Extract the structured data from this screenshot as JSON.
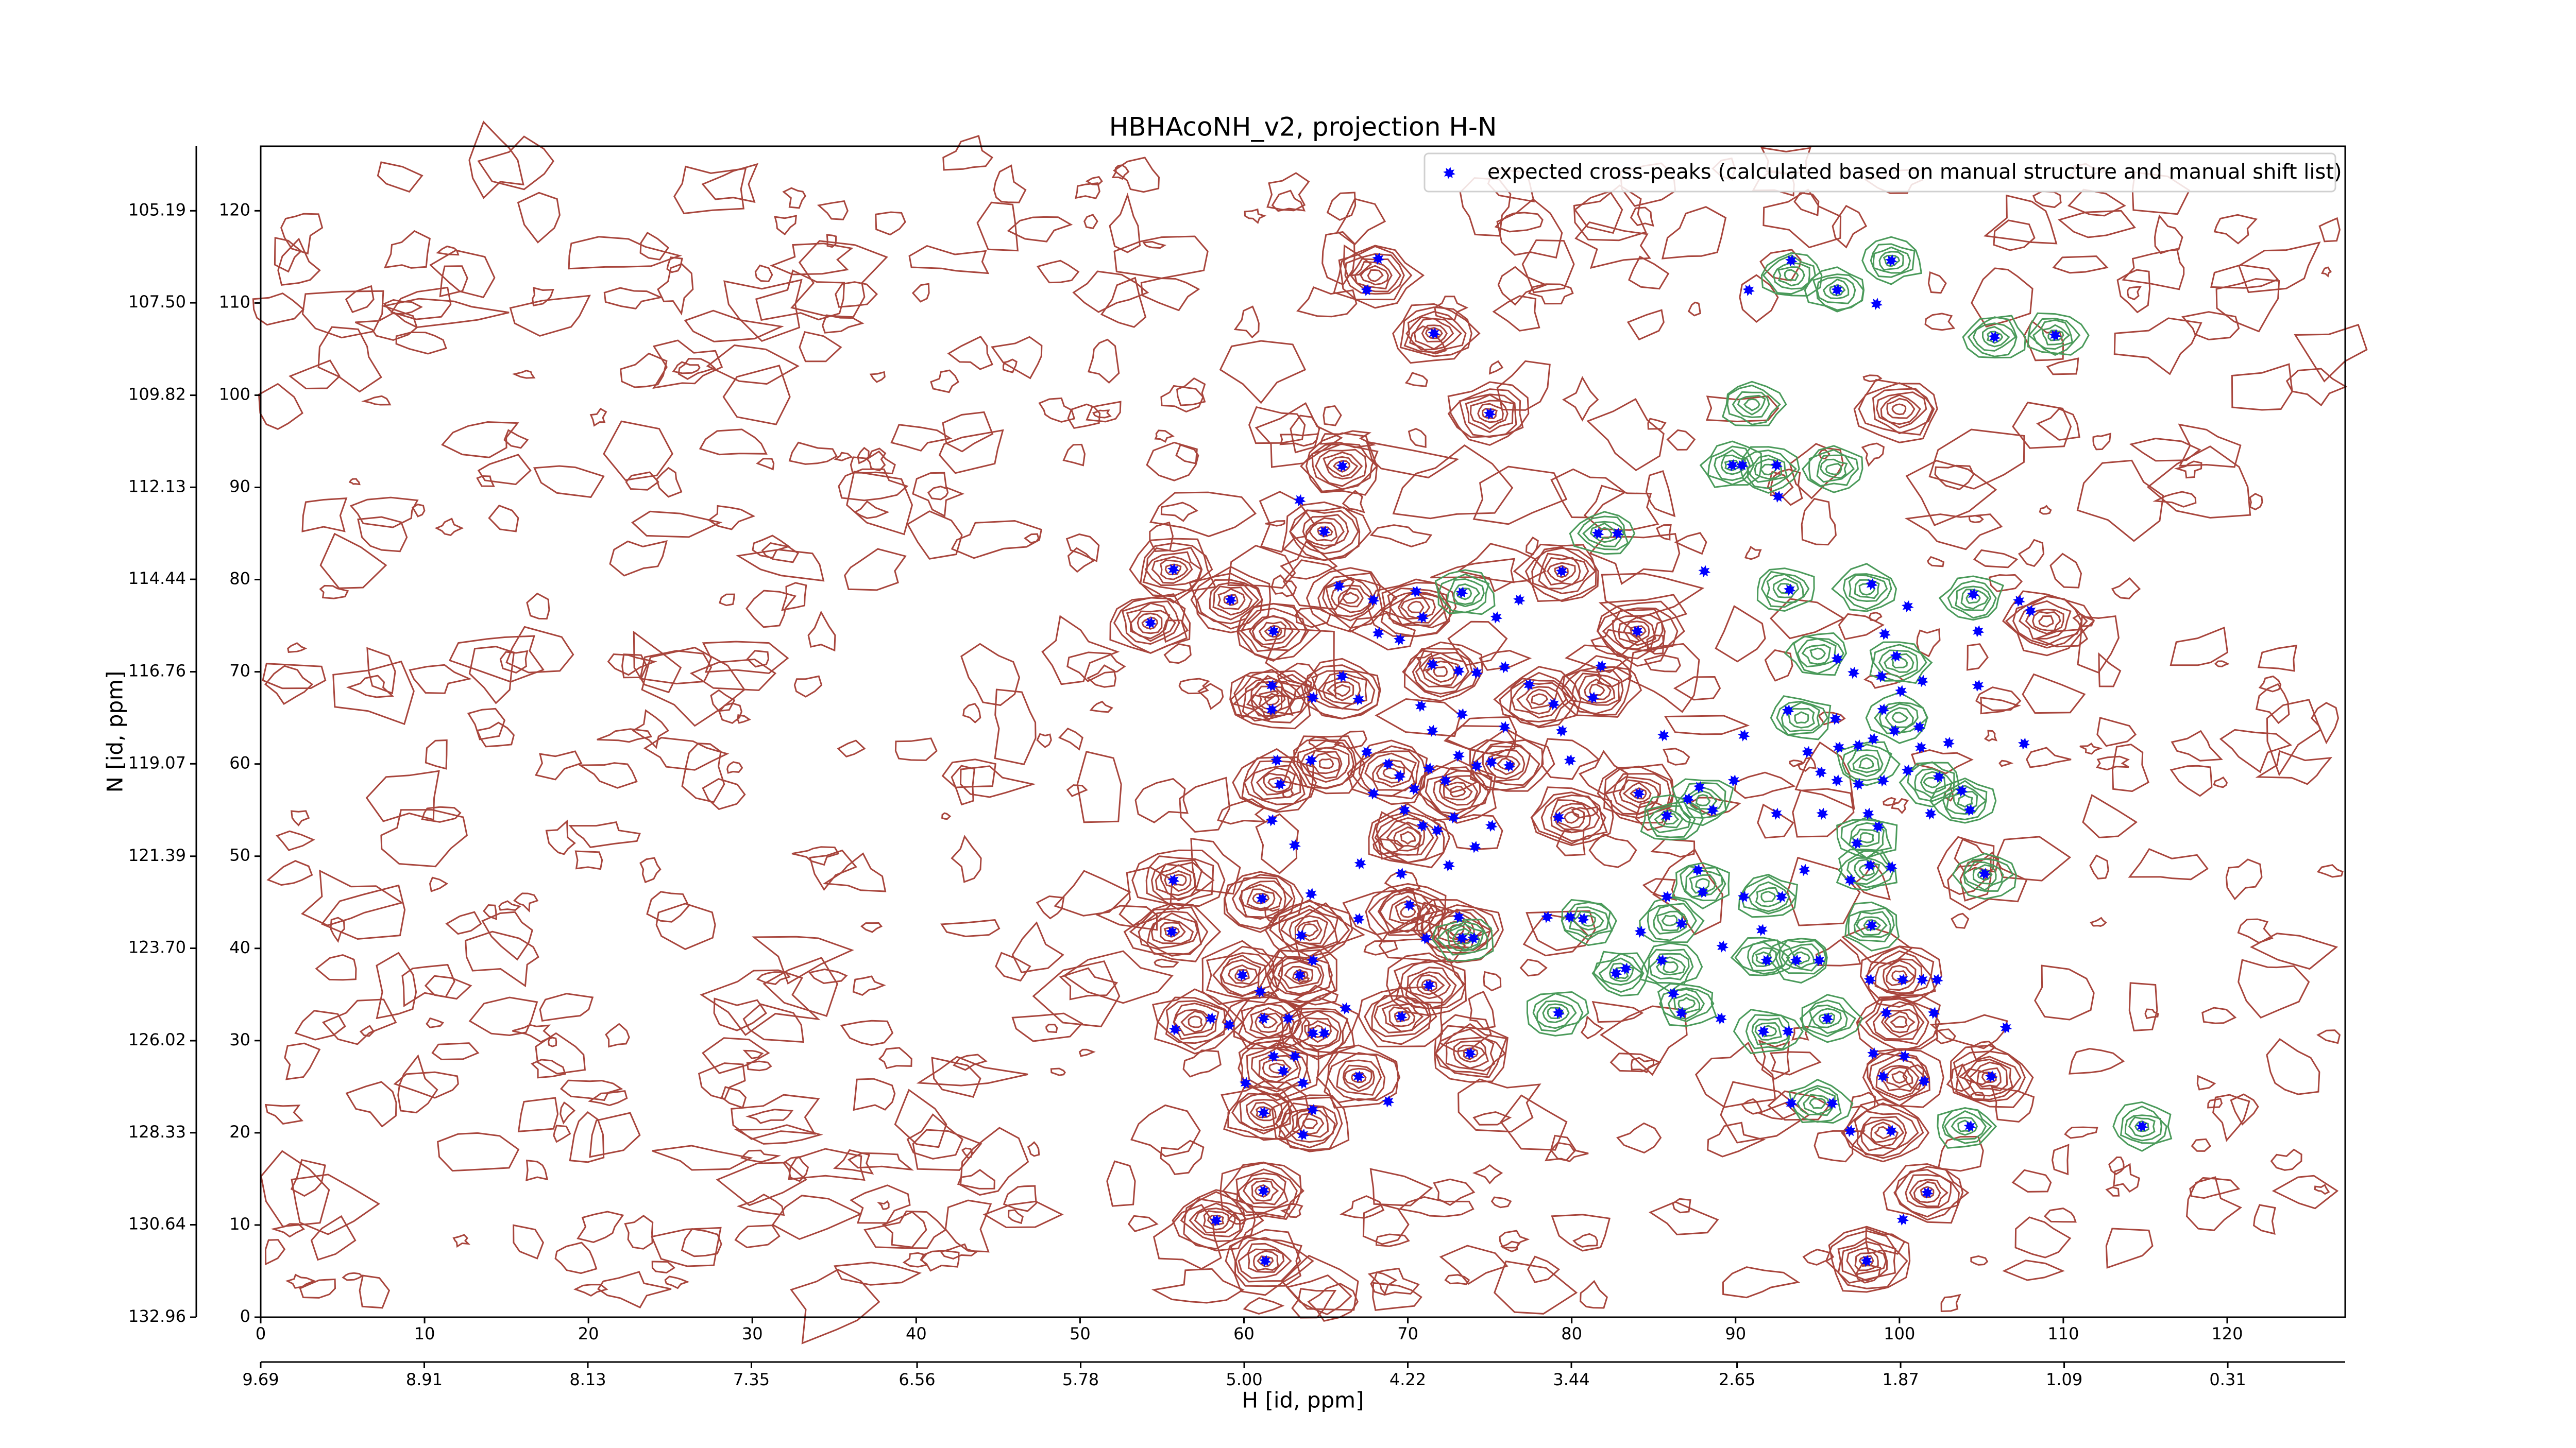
{
  "chart_data": {
    "type": "scatter",
    "title": "HBHAcoNH_v2, projection H-N",
    "xlabel": "H [id, ppm]",
    "ylabel": "N [id, ppm]",
    "xlim": [
      0,
      127.2
    ],
    "xticks": [
      0,
      10,
      20,
      30,
      40,
      50,
      60,
      70,
      80,
      90,
      100,
      110,
      120
    ],
    "x2lim": [
      9.69,
      -0.25
    ],
    "x2ticks": [
      9.69,
      8.91,
      8.13,
      7.35,
      6.56,
      5.78,
      {
        "value": 5,
        "label": "5.00"
      },
      4.22,
      3.44,
      2.65,
      1.87,
      1.09,
      0.31
    ],
    "ylim": [
      0,
      127
    ],
    "yticks": [
      0,
      10,
      20,
      30,
      40,
      50,
      60,
      70,
      80,
      90,
      100,
      110,
      120
    ],
    "y2lim": [
      132.96,
      103.57
    ],
    "y2ticks": [
      132.96,
      130.64,
      128.33,
      126.02,
      {
        "value": 123.7,
        "label": "123.70"
      },
      121.39,
      119.07,
      116.76,
      114.44,
      112.13,
      109.82,
      {
        "value": 107.5,
        "label": "107.50"
      },
      105.19
    ],
    "legend": "upper right",
    "series": [
      {
        "name": "expected cross-peaks (calculated based on manual structure and manual shift list)",
        "color": "#0000ff",
        "x": [
          68.2,
          67.5,
          71.6,
          75.0,
          66.0,
          63.4,
          64.9,
          55.7,
          54.3,
          65.8,
          67.9,
          70.9,
          70.5,
          73.3,
          75.4,
          76.8,
          79.4,
          84.0,
          61.8,
          59.2,
          68.2,
          69.5,
          71.5,
          73.1,
          74.2,
          75.9,
          77.4,
          78.9,
          81.3,
          81.8,
          61.7,
          61.7,
          64.2,
          66.0,
          67.0,
          70.8,
          71.5,
          73.3,
          75.9,
          79.4,
          79.9,
          85.6,
          62.0,
          62.2,
          61.7,
          64.1,
          67.5,
          68.8,
          69.5,
          70.4,
          71.3,
          72.3,
          73.1,
          74.2,
          75.1,
          76.2,
          67.9,
          69.8,
          70.9,
          71.8,
          72.8,
          74.1,
          75.1,
          79.2,
          84.1,
          72.5,
          69.6,
          67.1,
          63.1,
          55.7,
          55.6,
          61.1,
          64.1,
          63.5,
          64.2,
          67.0,
          70.1,
          71.1,
          73.1,
          73.3,
          74.0,
          78.5,
          79.9,
          84.2,
          83.3,
          59.9,
          63.4,
          61.0,
          71.3,
          58.0,
          55.8,
          59.1,
          61.2,
          62.7,
          64.2,
          64.9,
          66.2,
          69.6,
          61.8,
          63.1,
          60.1,
          62.4,
          63.6,
          67.0,
          68.8,
          61.2,
          64.2,
          63.6,
          61.2,
          58.3,
          61.3,
          73.8,
          93.4,
          99.5,
          90.8,
          96.2,
          98.6,
          105.8,
          109.5,
          89.8,
          92.6,
          90.4,
          92.5,
          81.6,
          82.8,
          88.1,
          93.3,
          98.3,
          104.5,
          107.3,
          104.8,
          108.0,
          100.5,
          99.1,
          96.2,
          97.2,
          99.8,
          101.4,
          98.9,
          100.1,
          104.8,
          93.2,
          96.1,
          99.0,
          101.2,
          90.5,
          94.4,
          96.3,
          97.5,
          98.4,
          99.7,
          101.3,
          103.0,
          107.6,
          95.2,
          96.2,
          97.5,
          99.0,
          100.5,
          102.4,
          103.8,
          89.9,
          87.8,
          87.1,
          88.6,
          85.8,
          92.5,
          95.3,
          98.1,
          98.7,
          101.9,
          104.3,
          97.4,
          98.2,
          99.5,
          97.0,
          87.7,
          88.0,
          85.8,
          86.7,
          90.5,
          92.8,
          94.2,
          98.3,
          91.6,
          91.9,
          93.7,
          95.1,
          89.2,
          85.5,
          82.7,
          86.2,
          86.7,
          89.1,
          91.7,
          93.2,
          95.6,
          98.2,
          100.2,
          101.4,
          102.3,
          99.2,
          102.1,
          98.4,
          100.3,
          99.0,
          101.5,
          93.4,
          95.9,
          97.0,
          99.5,
          104.3,
          105.6,
          106.5,
          105.2,
          114.8,
          101.7,
          100.2,
          98.0,
          79.2,
          80.7
        ],
        "values": [
          114.8,
          111.4,
          106.7,
          98.0,
          92.3,
          88.6,
          85.2,
          81.1,
          75.3,
          79.3,
          77.8,
          75.9,
          78.7,
          78.6,
          75.9,
          77.8,
          80.9,
          74.4,
          74.4,
          77.8,
          74.2,
          73.5,
          70.8,
          70.1,
          69.9,
          70.5,
          68.6,
          66.5,
          67.2,
          70.6,
          68.5,
          65.9,
          67.2,
          69.5,
          67.0,
          66.3,
          63.6,
          65.4,
          64.0,
          63.6,
          60.4,
          63.1,
          60.4,
          57.8,
          53.9,
          60.4,
          61.3,
          60.0,
          58.7,
          57.3,
          59.5,
          58.2,
          60.9,
          59.8,
          60.2,
          59.8,
          56.8,
          55.0,
          53.3,
          52.8,
          54.2,
          51.0,
          53.3,
          54.2,
          56.8,
          49.0,
          48.1,
          49.2,
          51.2,
          47.4,
          41.8,
          45.4,
          45.9,
          41.4,
          38.7,
          43.2,
          44.7,
          41.1,
          43.4,
          41.1,
          41.1,
          43.4,
          43.4,
          41.8,
          37.8,
          37.1,
          37.1,
          35.3,
          36.0,
          32.4,
          31.2,
          31.7,
          32.4,
          32.4,
          30.8,
          30.8,
          33.5,
          32.6,
          28.3,
          28.3,
          25.4,
          26.7,
          25.4,
          26.1,
          23.4,
          22.2,
          22.5,
          19.8,
          13.7,
          10.5,
          6.1,
          28.6,
          114.6,
          114.6,
          111.4,
          111.4,
          109.9,
          106.3,
          106.5,
          92.4,
          89.0,
          92.4,
          92.4,
          85.0,
          85.0,
          80.9,
          78.9,
          79.5,
          78.4,
          77.7,
          74.4,
          76.6,
          77.1,
          74.1,
          71.4,
          69.9,
          71.7,
          69.0,
          69.5,
          67.9,
          68.5,
          65.8,
          64.9,
          65.9,
          64.0,
          63.1,
          61.3,
          61.8,
          62.0,
          62.7,
          63.6,
          61.8,
          62.3,
          62.2,
          59.1,
          58.2,
          57.8,
          58.2,
          59.3,
          58.6,
          57.1,
          58.2,
          57.5,
          56.2,
          55.0,
          54.4,
          54.6,
          54.6,
          54.6,
          53.2,
          54.6,
          55.0,
          51.4,
          49.0,
          48.8,
          47.4,
          48.5,
          46.1,
          45.6,
          42.7,
          45.6,
          45.6,
          48.5,
          42.5,
          42.0,
          38.7,
          38.7,
          38.7,
          40.2,
          38.7,
          37.3,
          35.1,
          33.0,
          32.4,
          31.0,
          31.0,
          32.4,
          36.6,
          36.6,
          36.6,
          36.6,
          33.0,
          33.0,
          28.6,
          28.3,
          26.1,
          25.6,
          23.2,
          23.2,
          20.2,
          20.2,
          20.7,
          26.1,
          31.4,
          48.1,
          20.7,
          13.5,
          10.6,
          6.1,
          33.0,
          43.2
        ]
      }
    ],
    "contours": [
      {
        "color": "#a8453c",
        "x": [
          68,
          71.6,
          75,
          66,
          64.9,
          55.7,
          54.3,
          59.2,
          61.8,
          66.5,
          70.5,
          79.4,
          84,
          61.7,
          66,
          72,
          78,
          81.5,
          62,
          65,
          69,
          73,
          76,
          80,
          84.1,
          70,
          56,
          55.6,
          61,
          64,
          70,
          73,
          59.9,
          63.4,
          71.3,
          57,
          61.5,
          64.5,
          69.6,
          62,
          67,
          61.2,
          64,
          61.2,
          58.3,
          61.3,
          73.8,
          100,
          109,
          100,
          100,
          99,
          101.7,
          98,
          105.5,
          100
        ],
        "values": [
          113,
          106.7,
          98,
          92.3,
          85.2,
          81.1,
          75.3,
          77.8,
          74.4,
          78,
          77,
          80.9,
          74.4,
          67,
          68,
          70,
          67,
          68,
          58,
          60,
          59,
          57,
          60,
          54.2,
          56.8,
          52,
          47.4,
          41.8,
          45.4,
          42,
          44,
          42,
          37.1,
          37.1,
          36,
          32,
          32,
          31,
          32.6,
          27,
          26,
          22.2,
          21,
          13.7,
          10.5,
          6.1,
          28.6,
          98.5,
          75.5,
          32,
          26,
          20,
          13.5,
          6.1,
          26,
          37
        ]
      },
      {
        "color": "#4a9a5a",
        "x": [
          93.4,
          99.5,
          96.2,
          105.8,
          109.5,
          91,
          92,
          89.8,
          96,
          82,
          73.5,
          93,
          98,
          104.5,
          95,
          100,
          100,
          94,
          98,
          102,
          104,
          88,
          86,
          98,
          98,
          88,
          86,
          92,
          91.7,
          94,
          86,
          83,
          87,
          92,
          95.6,
          98.3,
          73.5,
          81,
          79,
          95,
          104,
          105.2,
          114.8
        ],
        "values": [
          113,
          114.6,
          111.4,
          106.3,
          106.5,
          99,
          92,
          92.4,
          92,
          85,
          78.5,
          79,
          79,
          78,
          72,
          71,
          65,
          65,
          60,
          58,
          56,
          56,
          54,
          52,
          48.5,
          47,
          43,
          45.6,
          39,
          39,
          38,
          37.3,
          34,
          31,
          32.4,
          42.5,
          41,
          43,
          33,
          23.2,
          20.7,
          48,
          20.7
        ]
      }
    ]
  }
}
